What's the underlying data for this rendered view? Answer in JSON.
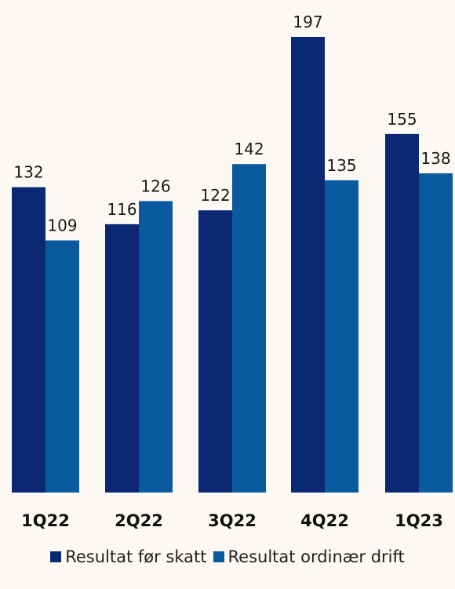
{
  "chart_data": {
    "type": "bar",
    "categories": [
      "1Q22",
      "2Q22",
      "3Q22",
      "4Q22",
      "1Q23"
    ],
    "series": [
      {
        "name": "Resultat før skatt",
        "color": "#0b2873",
        "values": [
          132,
          116,
          122,
          197,
          155
        ]
      },
      {
        "name": "Resultat ordinær drift",
        "color": "#0a5aa0",
        "values": [
          109,
          126,
          142,
          135,
          138
        ]
      }
    ],
    "ylim": [
      0,
      210
    ],
    "grid": false,
    "legend": "bottom"
  }
}
